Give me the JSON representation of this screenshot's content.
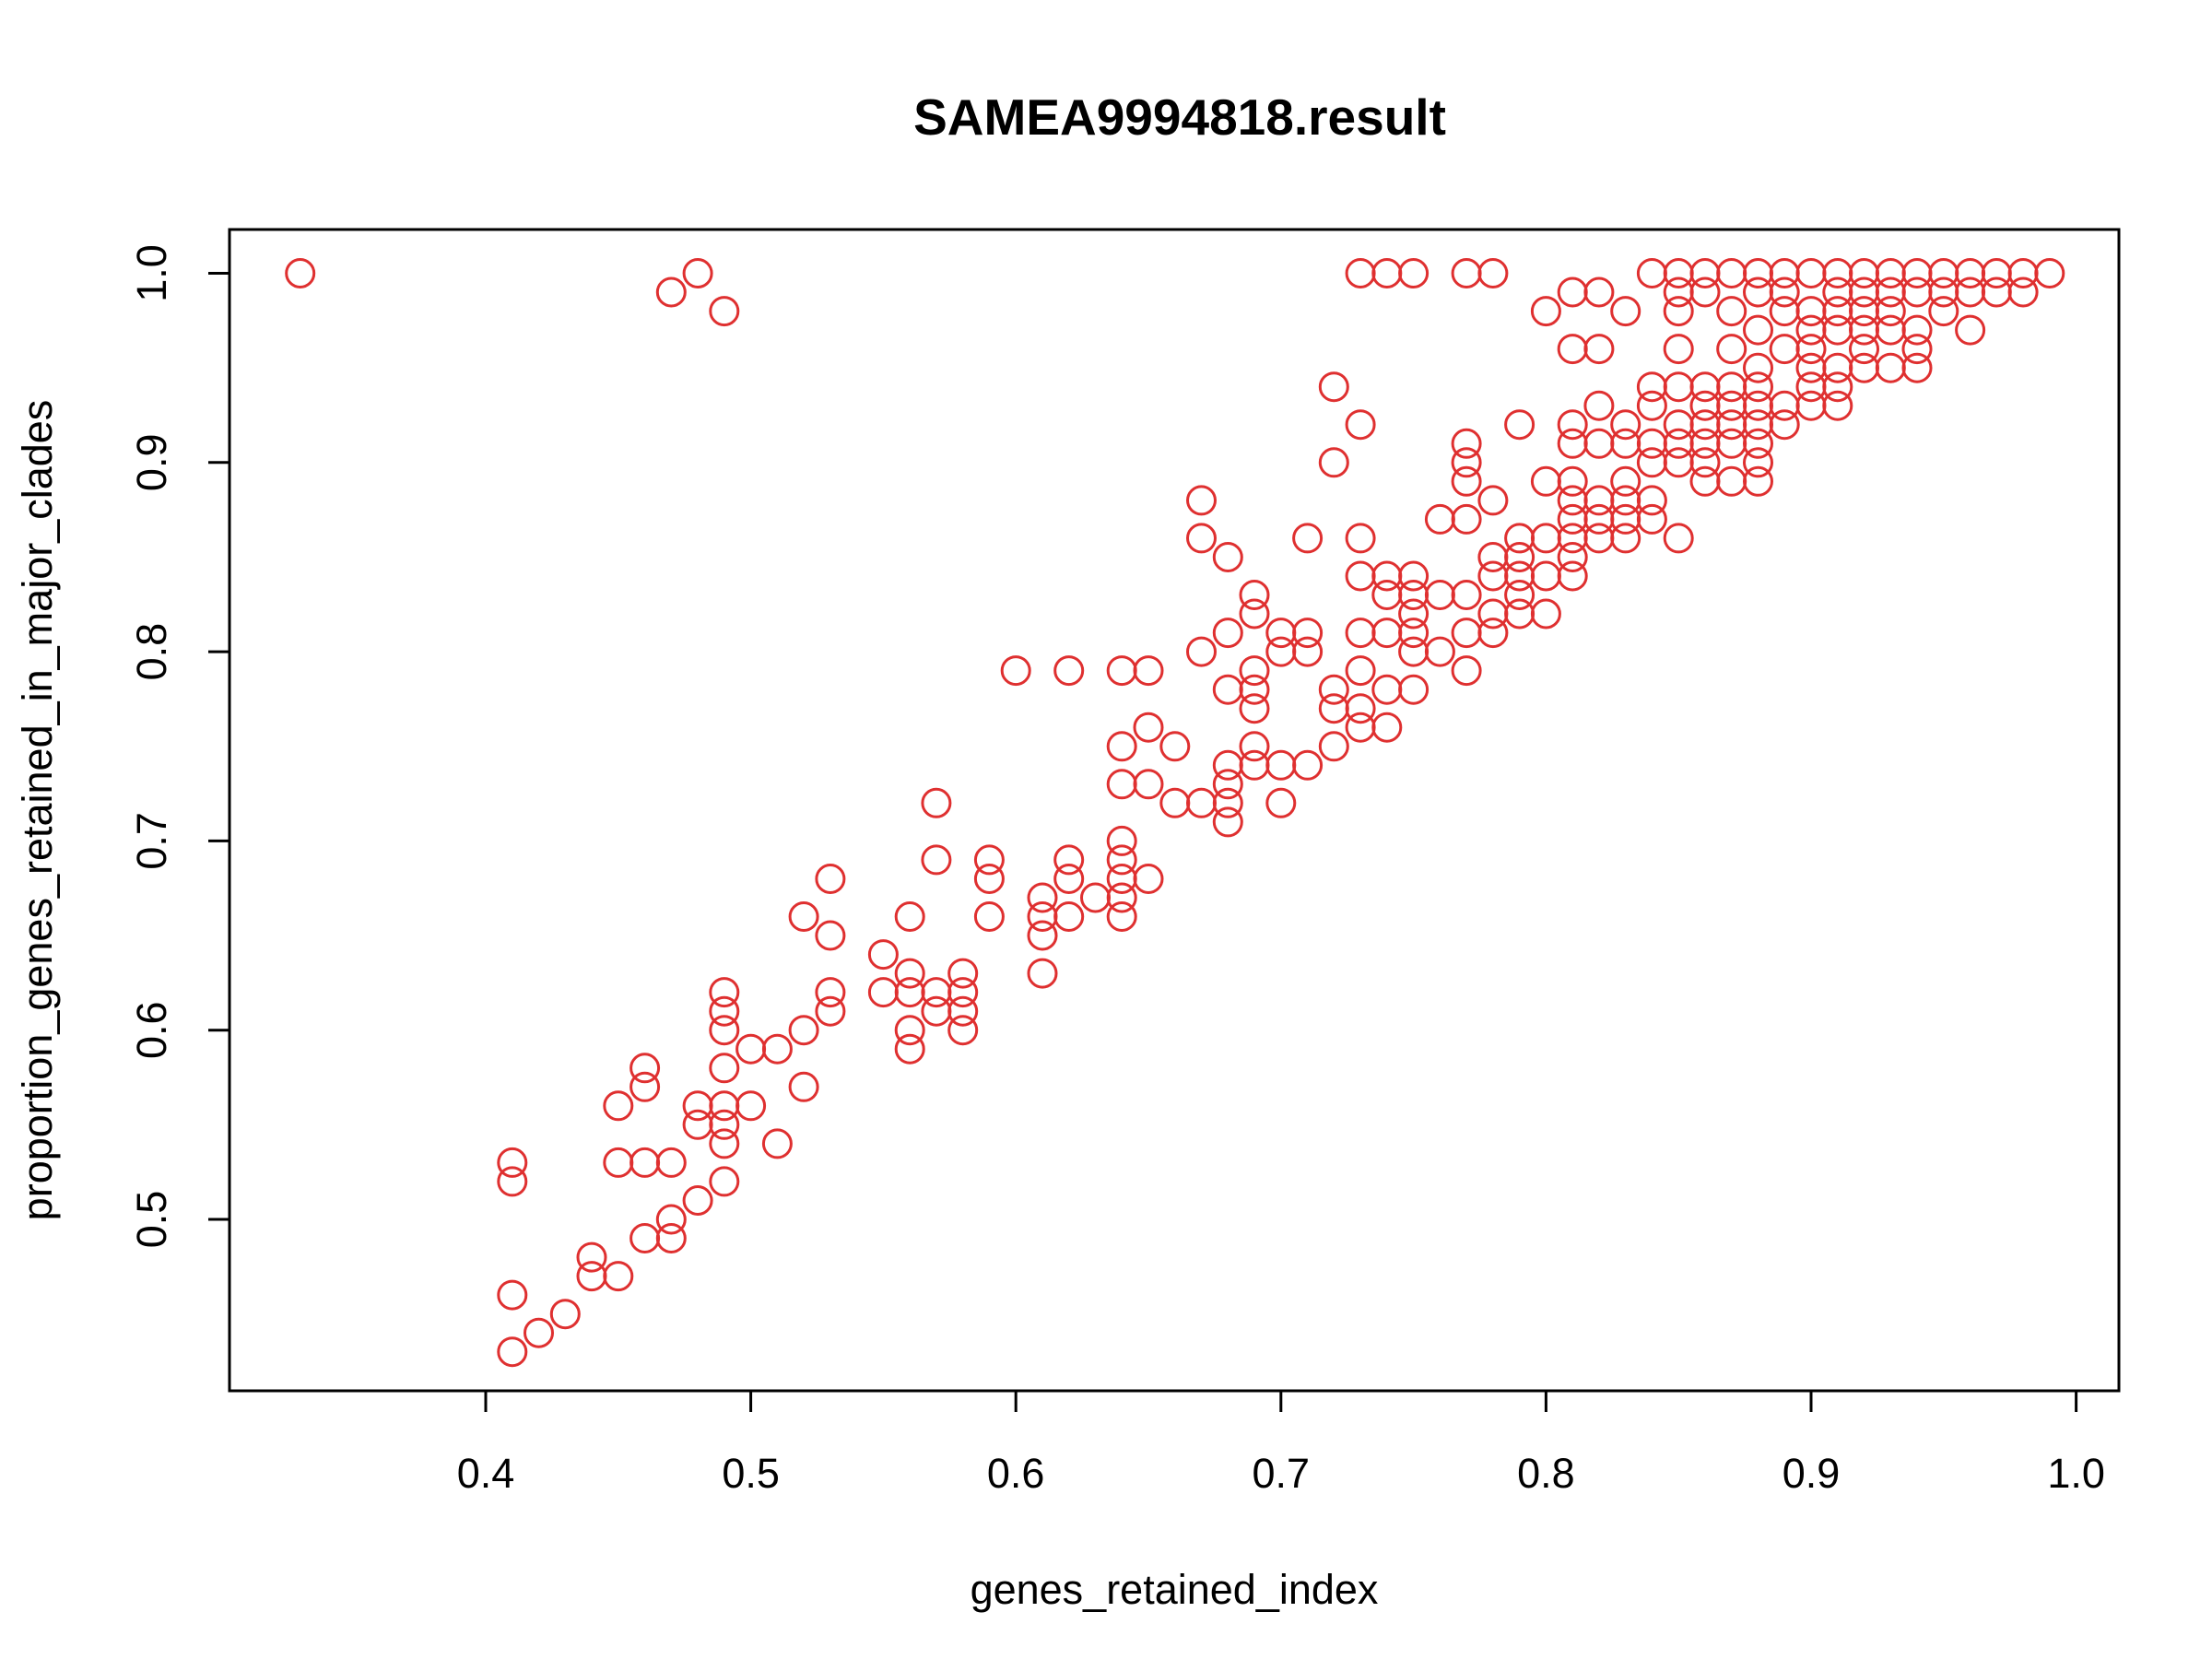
{
  "chart_data": {
    "type": "scatter",
    "title": "SAMEA9994818.result",
    "xlabel": "genes_retained_index",
    "ylabel": "proportion_genes_retained_in_major_clades",
    "xlim": [
      0.3,
      1.0
    ],
    "ylim": [
      0.43,
      1.0
    ],
    "xticks": [
      "0.4",
      "0.5",
      "0.6",
      "0.7",
      "0.8",
      "0.9",
      "1.0"
    ],
    "yticks": [
      "0.5",
      "0.6",
      "0.7",
      "0.8",
      "0.9",
      "1.0"
    ],
    "grid": false,
    "legend": false,
    "marker": "open-circle",
    "color": "#df3030",
    "points": [
      [
        0.33,
        1.0
      ],
      [
        0.48,
        1.0
      ],
      [
        0.47,
        0.99
      ],
      [
        0.49,
        0.98
      ],
      [
        0.41,
        0.53
      ],
      [
        0.41,
        0.52
      ],
      [
        0.41,
        0.46
      ],
      [
        0.41,
        0.43
      ],
      [
        0.42,
        0.44
      ],
      [
        0.43,
        0.45
      ],
      [
        0.44,
        0.48
      ],
      [
        0.44,
        0.47
      ],
      [
        0.45,
        0.47
      ],
      [
        0.45,
        0.56
      ],
      [
        0.45,
        0.53
      ],
      [
        0.46,
        0.58
      ],
      [
        0.46,
        0.57
      ],
      [
        0.46,
        0.53
      ],
      [
        0.46,
        0.49
      ],
      [
        0.47,
        0.53
      ],
      [
        0.47,
        0.5
      ],
      [
        0.47,
        0.49
      ],
      [
        0.48,
        0.56
      ],
      [
        0.48,
        0.55
      ],
      [
        0.48,
        0.51
      ],
      [
        0.49,
        0.62
      ],
      [
        0.49,
        0.61
      ],
      [
        0.49,
        0.6
      ],
      [
        0.49,
        0.58
      ],
      [
        0.49,
        0.56
      ],
      [
        0.49,
        0.55
      ],
      [
        0.49,
        0.54
      ],
      [
        0.49,
        0.52
      ],
      [
        0.5,
        0.59
      ],
      [
        0.5,
        0.56
      ],
      [
        0.51,
        0.59
      ],
      [
        0.51,
        0.54
      ],
      [
        0.52,
        0.66
      ],
      [
        0.52,
        0.6
      ],
      [
        0.52,
        0.57
      ],
      [
        0.53,
        0.68
      ],
      [
        0.53,
        0.65
      ],
      [
        0.53,
        0.62
      ],
      [
        0.53,
        0.61
      ],
      [
        0.55,
        0.64
      ],
      [
        0.55,
        0.62
      ],
      [
        0.56,
        0.66
      ],
      [
        0.56,
        0.63
      ],
      [
        0.56,
        0.62
      ],
      [
        0.56,
        0.6
      ],
      [
        0.56,
        0.59
      ],
      [
        0.57,
        0.72
      ],
      [
        0.57,
        0.69
      ],
      [
        0.57,
        0.62
      ],
      [
        0.57,
        0.61
      ],
      [
        0.58,
        0.63
      ],
      [
        0.58,
        0.62
      ],
      [
        0.58,
        0.61
      ],
      [
        0.58,
        0.6
      ],
      [
        0.59,
        0.69
      ],
      [
        0.59,
        0.68
      ],
      [
        0.59,
        0.66
      ],
      [
        0.6,
        0.79
      ],
      [
        0.61,
        0.67
      ],
      [
        0.61,
        0.66
      ],
      [
        0.61,
        0.65
      ],
      [
        0.61,
        0.63
      ],
      [
        0.62,
        0.79
      ],
      [
        0.62,
        0.69
      ],
      [
        0.62,
        0.68
      ],
      [
        0.62,
        0.66
      ],
      [
        0.63,
        0.67
      ],
      [
        0.64,
        0.79
      ],
      [
        0.64,
        0.75
      ],
      [
        0.64,
        0.73
      ],
      [
        0.64,
        0.7
      ],
      [
        0.64,
        0.69
      ],
      [
        0.64,
        0.68
      ],
      [
        0.64,
        0.67
      ],
      [
        0.64,
        0.66
      ],
      [
        0.65,
        0.79
      ],
      [
        0.65,
        0.76
      ],
      [
        0.65,
        0.73
      ],
      [
        0.65,
        0.68
      ],
      [
        0.66,
        0.75
      ],
      [
        0.66,
        0.72
      ],
      [
        0.67,
        0.88
      ],
      [
        0.67,
        0.86
      ],
      [
        0.67,
        0.8
      ],
      [
        0.67,
        0.72
      ],
      [
        0.68,
        0.85
      ],
      [
        0.68,
        0.81
      ],
      [
        0.68,
        0.78
      ],
      [
        0.68,
        0.74
      ],
      [
        0.68,
        0.73
      ],
      [
        0.68,
        0.72
      ],
      [
        0.68,
        0.71
      ],
      [
        0.69,
        0.83
      ],
      [
        0.69,
        0.82
      ],
      [
        0.69,
        0.79
      ],
      [
        0.69,
        0.78
      ],
      [
        0.69,
        0.77
      ],
      [
        0.69,
        0.75
      ],
      [
        0.69,
        0.74
      ],
      [
        0.7,
        0.81
      ],
      [
        0.7,
        0.8
      ],
      [
        0.7,
        0.74
      ],
      [
        0.7,
        0.72
      ],
      [
        0.71,
        0.86
      ],
      [
        0.71,
        0.81
      ],
      [
        0.71,
        0.8
      ],
      [
        0.71,
        0.74
      ],
      [
        0.72,
        0.94
      ],
      [
        0.72,
        0.9
      ],
      [
        0.72,
        0.78
      ],
      [
        0.72,
        0.77
      ],
      [
        0.72,
        0.75
      ],
      [
        0.73,
        1.0
      ],
      [
        0.73,
        0.92
      ],
      [
        0.73,
        0.86
      ],
      [
        0.73,
        0.84
      ],
      [
        0.73,
        0.81
      ],
      [
        0.73,
        0.79
      ],
      [
        0.73,
        0.77
      ],
      [
        0.73,
        0.76
      ],
      [
        0.74,
        1.0
      ],
      [
        0.74,
        0.84
      ],
      [
        0.74,
        0.83
      ],
      [
        0.74,
        0.81
      ],
      [
        0.74,
        0.78
      ],
      [
        0.74,
        0.76
      ],
      [
        0.75,
        1.0
      ],
      [
        0.75,
        0.84
      ],
      [
        0.75,
        0.83
      ],
      [
        0.75,
        0.82
      ],
      [
        0.75,
        0.81
      ],
      [
        0.75,
        0.8
      ],
      [
        0.75,
        0.78
      ],
      [
        0.76,
        0.87
      ],
      [
        0.76,
        0.83
      ],
      [
        0.76,
        0.8
      ],
      [
        0.77,
        1.0
      ],
      [
        0.77,
        0.91
      ],
      [
        0.77,
        0.9
      ],
      [
        0.77,
        0.89
      ],
      [
        0.77,
        0.87
      ],
      [
        0.77,
        0.83
      ],
      [
        0.77,
        0.81
      ],
      [
        0.77,
        0.79
      ],
      [
        0.78,
        1.0
      ],
      [
        0.78,
        0.88
      ],
      [
        0.78,
        0.85
      ],
      [
        0.78,
        0.84
      ],
      [
        0.78,
        0.82
      ],
      [
        0.78,
        0.81
      ],
      [
        0.79,
        0.92
      ],
      [
        0.79,
        0.86
      ],
      [
        0.79,
        0.85
      ],
      [
        0.79,
        0.84
      ],
      [
        0.79,
        0.83
      ],
      [
        0.79,
        0.82
      ],
      [
        0.8,
        0.98
      ],
      [
        0.8,
        0.89
      ],
      [
        0.8,
        0.86
      ],
      [
        0.8,
        0.84
      ],
      [
        0.8,
        0.82
      ],
      [
        0.81,
        0.99
      ],
      [
        0.81,
        0.96
      ],
      [
        0.81,
        0.92
      ],
      [
        0.81,
        0.91
      ],
      [
        0.81,
        0.89
      ],
      [
        0.81,
        0.88
      ],
      [
        0.81,
        0.87
      ],
      [
        0.81,
        0.86
      ],
      [
        0.81,
        0.85
      ],
      [
        0.81,
        0.84
      ],
      [
        0.82,
        0.99
      ],
      [
        0.82,
        0.96
      ],
      [
        0.82,
        0.93
      ],
      [
        0.82,
        0.91
      ],
      [
        0.82,
        0.88
      ],
      [
        0.82,
        0.87
      ],
      [
        0.82,
        0.86
      ],
      [
        0.83,
        0.98
      ],
      [
        0.83,
        0.92
      ],
      [
        0.83,
        0.91
      ],
      [
        0.83,
        0.89
      ],
      [
        0.83,
        0.88
      ],
      [
        0.83,
        0.87
      ],
      [
        0.83,
        0.86
      ],
      [
        0.84,
        1.0
      ],
      [
        0.84,
        0.94
      ],
      [
        0.84,
        0.93
      ],
      [
        0.84,
        0.91
      ],
      [
        0.84,
        0.9
      ],
      [
        0.84,
        0.88
      ],
      [
        0.84,
        0.87
      ],
      [
        0.85,
        1.0
      ],
      [
        0.85,
        0.99
      ],
      [
        0.85,
        0.98
      ],
      [
        0.85,
        0.96
      ],
      [
        0.85,
        0.94
      ],
      [
        0.85,
        0.92
      ],
      [
        0.85,
        0.91
      ],
      [
        0.85,
        0.9
      ],
      [
        0.85,
        0.86
      ],
      [
        0.86,
        1.0
      ],
      [
        0.86,
        0.99
      ],
      [
        0.86,
        0.94
      ],
      [
        0.86,
        0.93
      ],
      [
        0.86,
        0.92
      ],
      [
        0.86,
        0.91
      ],
      [
        0.86,
        0.9
      ],
      [
        0.86,
        0.89
      ],
      [
        0.87,
        1.0
      ],
      [
        0.87,
        0.98
      ],
      [
        0.87,
        0.96
      ],
      [
        0.87,
        0.94
      ],
      [
        0.87,
        0.93
      ],
      [
        0.87,
        0.92
      ],
      [
        0.87,
        0.91
      ],
      [
        0.87,
        0.89
      ],
      [
        0.88,
        1.0
      ],
      [
        0.88,
        0.99
      ],
      [
        0.88,
        0.97
      ],
      [
        0.88,
        0.95
      ],
      [
        0.88,
        0.94
      ],
      [
        0.88,
        0.93
      ],
      [
        0.88,
        0.92
      ],
      [
        0.88,
        0.91
      ],
      [
        0.88,
        0.9
      ],
      [
        0.88,
        0.89
      ],
      [
        0.89,
        1.0
      ],
      [
        0.89,
        0.99
      ],
      [
        0.89,
        0.98
      ],
      [
        0.89,
        0.96
      ],
      [
        0.89,
        0.93
      ],
      [
        0.89,
        0.92
      ],
      [
        0.9,
        1.0
      ],
      [
        0.9,
        0.98
      ],
      [
        0.9,
        0.97
      ],
      [
        0.9,
        0.96
      ],
      [
        0.9,
        0.95
      ],
      [
        0.9,
        0.94
      ],
      [
        0.9,
        0.93
      ],
      [
        0.91,
        1.0
      ],
      [
        0.91,
        0.99
      ],
      [
        0.91,
        0.98
      ],
      [
        0.91,
        0.97
      ],
      [
        0.91,
        0.95
      ],
      [
        0.91,
        0.94
      ],
      [
        0.91,
        0.93
      ],
      [
        0.92,
        1.0
      ],
      [
        0.92,
        0.99
      ],
      [
        0.92,
        0.98
      ],
      [
        0.92,
        0.97
      ],
      [
        0.92,
        0.96
      ],
      [
        0.92,
        0.95
      ],
      [
        0.93,
        1.0
      ],
      [
        0.93,
        0.99
      ],
      [
        0.93,
        0.98
      ],
      [
        0.93,
        0.97
      ],
      [
        0.93,
        0.95
      ],
      [
        0.94,
        1.0
      ],
      [
        0.94,
        0.99
      ],
      [
        0.94,
        0.97
      ],
      [
        0.94,
        0.96
      ],
      [
        0.94,
        0.95
      ],
      [
        0.95,
        1.0
      ],
      [
        0.95,
        0.99
      ],
      [
        0.95,
        0.98
      ],
      [
        0.96,
        1.0
      ],
      [
        0.96,
        0.99
      ],
      [
        0.96,
        0.97
      ],
      [
        0.97,
        1.0
      ],
      [
        0.97,
        0.99
      ],
      [
        0.98,
        1.0
      ],
      [
        0.98,
        0.99
      ],
      [
        0.99,
        1.0
      ]
    ]
  }
}
